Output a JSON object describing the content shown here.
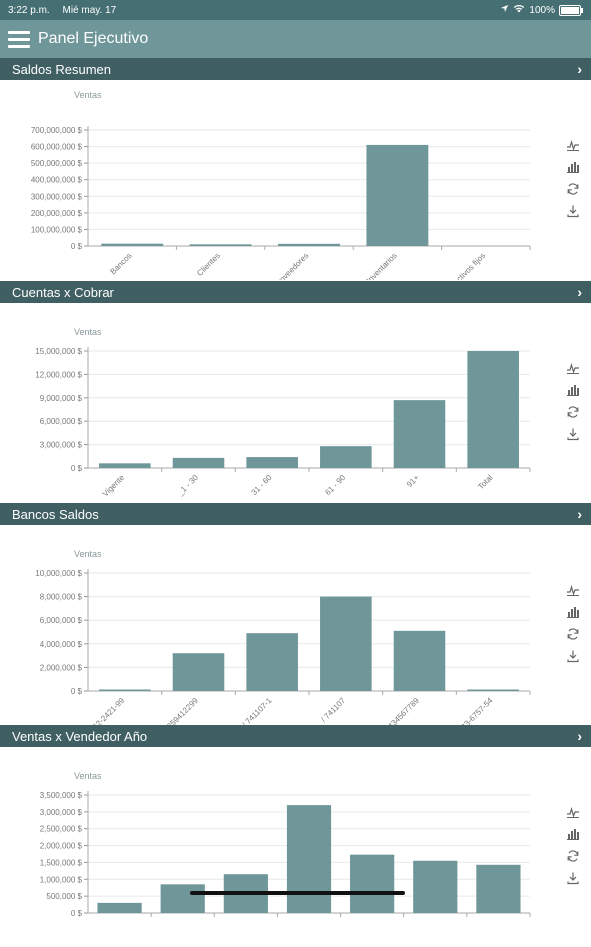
{
  "status": {
    "time": "3:22 p.m.",
    "date": "Mié may. 17",
    "battery": "100%"
  },
  "app": {
    "title": "Panel Ejecutivo"
  },
  "colors": {
    "bar": "#6f9699",
    "header": "#3f5f63",
    "appbar": "#6f9699",
    "statusbar": "#466f73"
  },
  "sections": [
    {
      "title": "Saldos Resumen"
    },
    {
      "title": "Cuentas x Cobrar"
    },
    {
      "title": "Bancos Saldos"
    },
    {
      "title": "Ventas x Vendedor Año"
    }
  ],
  "chart_icons": [
    "line-chart-icon",
    "bar-chart-icon",
    "refresh-icon",
    "download-icon"
  ],
  "chart_data": [
    {
      "type": "bar",
      "ylabel": "Ventas",
      "categories": [
        "Bancos",
        "Clientes",
        "Proveedores",
        "Inventarios",
        "Activos fijos"
      ],
      "values": [
        14000000,
        10000000,
        13000000,
        610000000,
        0
      ],
      "ylim": [
        0,
        700000000
      ],
      "yticks": [
        "0 $",
        "100,000,000 $",
        "200,000,000 $",
        "300,000,000 $",
        "400,000,000 $",
        "500,000,000 $",
        "600,000,000 $",
        "700,000,000 $"
      ],
      "grid": true
    },
    {
      "type": "bar",
      "ylabel": "Ventas",
      "categories": [
        "Vigente",
        "_1 - 30",
        "31 - 60",
        "61 - 90",
        "91+",
        "Total"
      ],
      "values": [
        600000,
        1300000,
        1400000,
        2800000,
        8700000,
        15000000
      ],
      "ylim": [
        0,
        15000000
      ],
      "yticks": [
        "0 $",
        "3,000,000 $",
        "6,000,000 $",
        "9,000,000 $",
        "12,000,000 $",
        "15,000,000 $"
      ],
      "grid": true
    },
    {
      "type": "bar",
      "ylabel": "Ventas",
      "categories": [
        "2762-2421-99",
        "/ 1259412299",
        "/ 741107-1",
        "/ 741107",
        "8765434567789",
        "3543-6757-54"
      ],
      "values": [
        50000,
        3200000,
        4900000,
        8000000,
        5100000,
        50000
      ],
      "ylim": [
        0,
        10000000
      ],
      "yticks": [
        "0 $",
        "2,000,000 $",
        "4,000,000 $",
        "6,000,000 $",
        "8,000,000 $",
        "10,000,000 $"
      ],
      "grid": true
    },
    {
      "type": "bar",
      "ylabel": "Ventas",
      "categories": [
        "",
        "",
        "",
        "",
        "",
        "",
        ""
      ],
      "values": [
        300000,
        850000,
        1150000,
        3200000,
        1730000,
        1550000,
        1430000
      ],
      "ylim": [
        0,
        3500000
      ],
      "yticks": [
        "0 $",
        "500,000 $",
        "1,000,000 $",
        "1,500,000 $",
        "2,000,000 $",
        "2,500,000 $",
        "3,000,000 $",
        "3,500,000 $"
      ],
      "grid": true
    }
  ]
}
